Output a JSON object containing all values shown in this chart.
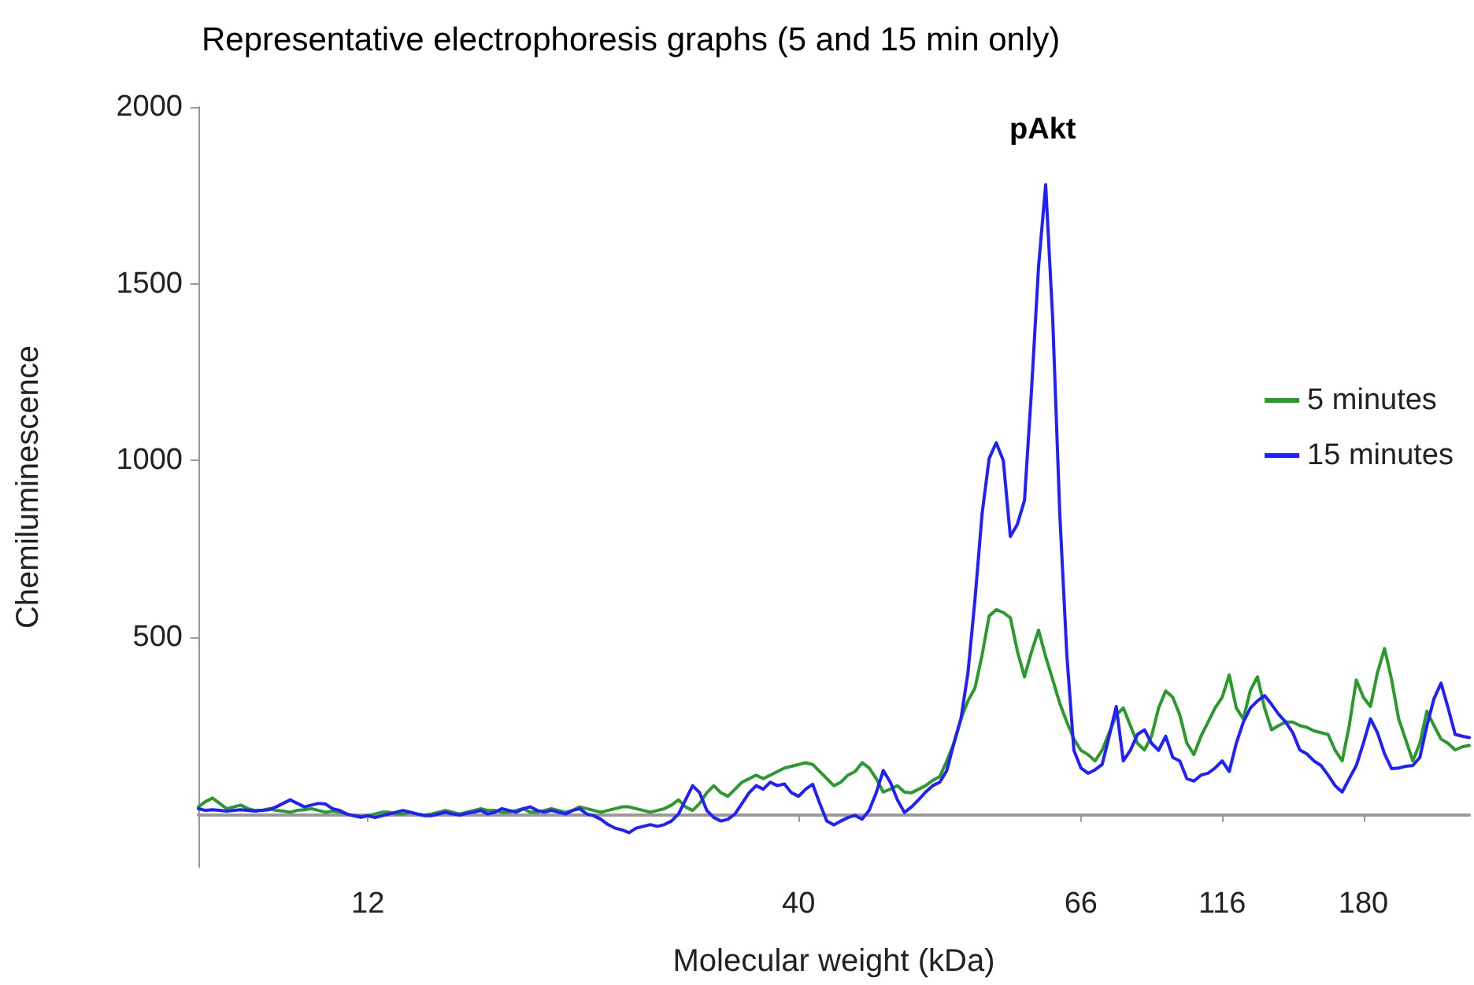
{
  "chart_data": {
    "type": "line",
    "title": "Representative electrophoresis graphs (5 and 15 min only)",
    "xlabel": "Molecular weight (kDa)",
    "ylabel": "Chemiluminescence",
    "annotations": [
      "pAkt"
    ],
    "categories": [
      null,
      null,
      null,
      null,
      null,
      null,
      null,
      null,
      null,
      null,
      null,
      null,
      null,
      null,
      null,
      null,
      null,
      null,
      null,
      null,
      null,
      null,
      null,
      null,
      "12",
      null,
      null,
      null,
      null,
      null,
      null,
      null,
      null,
      null,
      null,
      null,
      null,
      null,
      null,
      null,
      null,
      null,
      null,
      null,
      null,
      null,
      null,
      null,
      null,
      null,
      null,
      null,
      null,
      null,
      null,
      null,
      null,
      null,
      null,
      null,
      null,
      null,
      null,
      null,
      null,
      null,
      null,
      null,
      null,
      null,
      null,
      null,
      null,
      null,
      null,
      null,
      null,
      null,
      null,
      null,
      null,
      null,
      null,
      null,
      null,
      "40",
      null,
      null,
      null,
      null,
      null,
      null,
      null,
      null,
      null,
      null,
      null,
      null,
      null,
      null,
      null,
      null,
      null,
      null,
      null,
      null,
      null,
      null,
      null,
      null,
      null,
      null,
      null,
      null,
      null,
      null,
      null,
      null,
      null,
      null,
      null,
      null,
      null,
      null,
      null,
      "66",
      null,
      null,
      null,
      null,
      null,
      null,
      null,
      null,
      null,
      null,
      null,
      null,
      null,
      null,
      null,
      null,
      null,
      null,
      null,
      "116",
      null,
      null,
      null,
      null,
      null,
      null,
      null,
      null,
      null,
      null,
      null,
      null,
      null,
      null,
      null,
      null,
      null,
      null,
      null,
      "180",
      null,
      null,
      null,
      null,
      null,
      null,
      null,
      null,
      null,
      null,
      null,
      null,
      null,
      null,
      null
    ],
    "series": [
      {
        "name": "5 minutes",
        "color": "#2a9a2a",
        "values": [
          20,
          35,
          45,
          30,
          15,
          20,
          25,
          15,
          10,
          10,
          15,
          10,
          8,
          5,
          10,
          12,
          15,
          10,
          5,
          8,
          5,
          0,
          -5,
          -10,
          -5,
          0,
          5,
          5,
          0,
          0,
          5,
          0,
          -3,
          0,
          5,
          10,
          5,
          0,
          5,
          10,
          15,
          10,
          10,
          5,
          5,
          10,
          15,
          5,
          5,
          10,
          15,
          10,
          5,
          10,
          20,
          15,
          10,
          5,
          10,
          15,
          20,
          20,
          15,
          10,
          5,
          10,
          15,
          25,
          40,
          20,
          10,
          30,
          60,
          80,
          60,
          50,
          70,
          90,
          100,
          110,
          100,
          110,
          120,
          130,
          135,
          140,
          145,
          140,
          120,
          100,
          80,
          90,
          110,
          120,
          145,
          130,
          100,
          62,
          70,
          80,
          62,
          60,
          70,
          80,
          95,
          106,
          150,
          200,
          269,
          320,
          357,
          450,
          560,
          578,
          570,
          555,
          460,
          388,
          459,
          520,
          445,
          380,
          313,
          260,
          212,
          180,
          168,
          150,
          180,
          230,
          280,
          300,
          250,
          200,
          181,
          220,
          300,
          348,
          330,
          280,
          200,
          168,
          220,
          260,
          300,
          330,
          393,
          300,
          269,
          350,
          388,
          300,
          238,
          250,
          260,
          260,
          250,
          245,
          235,
          230,
          225,
          180,
          150,
          250,
          379,
          330,
          304,
          400,
          468,
          380,
          269,
          210,
          150,
          200,
          291,
          250,
          212,
          200,
          181,
          190,
          194
        ]
      },
      {
        "name": "15 minutes",
        "color": "#1f1fff",
        "values": [
          15,
          10,
          12,
          10,
          8,
          10,
          12,
          10,
          8,
          10,
          12,
          20,
          30,
          40,
          30,
          20,
          25,
          30,
          28,
          15,
          10,
          0,
          -5,
          -8,
          -5,
          -10,
          -5,
          0,
          5,
          10,
          5,
          0,
          -5,
          -5,
          0,
          5,
          0,
          -3,
          2,
          5,
          10,
          0,
          5,
          15,
          10,
          5,
          15,
          20,
          10,
          5,
          10,
          5,
          0,
          10,
          15,
          0,
          -5,
          -15,
          -30,
          -40,
          -45,
          -53,
          -40,
          -35,
          -30,
          -35,
          -30,
          -20,
          0,
          40,
          80,
          60,
          10,
          -10,
          -20,
          -15,
          0,
          30,
          60,
          80,
          70,
          90,
          80,
          85,
          60,
          50,
          70,
          84,
          30,
          -20,
          -31,
          -20,
          -10,
          -4,
          -15,
          10,
          60,
          123,
          90,
          40,
          4,
          20,
          40,
          62,
          80,
          90,
          123,
          200,
          269,
          400,
          609,
          850,
          1006,
          1050,
          1000,
          785,
          820,
          887,
          1200,
          1550,
          1780,
          1400,
          850,
          450,
          180,
          130,
          115,
          125,
          140,
          220,
          304,
          150,
          180,
          225,
          238,
          200,
          180,
          220,
          160,
          150,
          100,
          93,
          110,
          115,
          130,
          150,
          120,
          200,
          260,
          300,
          320,
          335,
          310,
          282,
          260,
          230,
          181,
          170,
          150,
          137,
          110,
          80,
          62,
          100,
          137,
          200,
          269,
          230,
          170,
          128,
          130,
          135,
          137,
          160,
          250,
          326,
          370,
          300,
          225,
          220,
          216
        ]
      }
    ],
    "ylim": [
      -150,
      2000
    ],
    "yticks": [
      500,
      1000,
      1500,
      2000
    ],
    "grid": false,
    "legend": "right",
    "marker": "none",
    "line_style": "solid"
  }
}
